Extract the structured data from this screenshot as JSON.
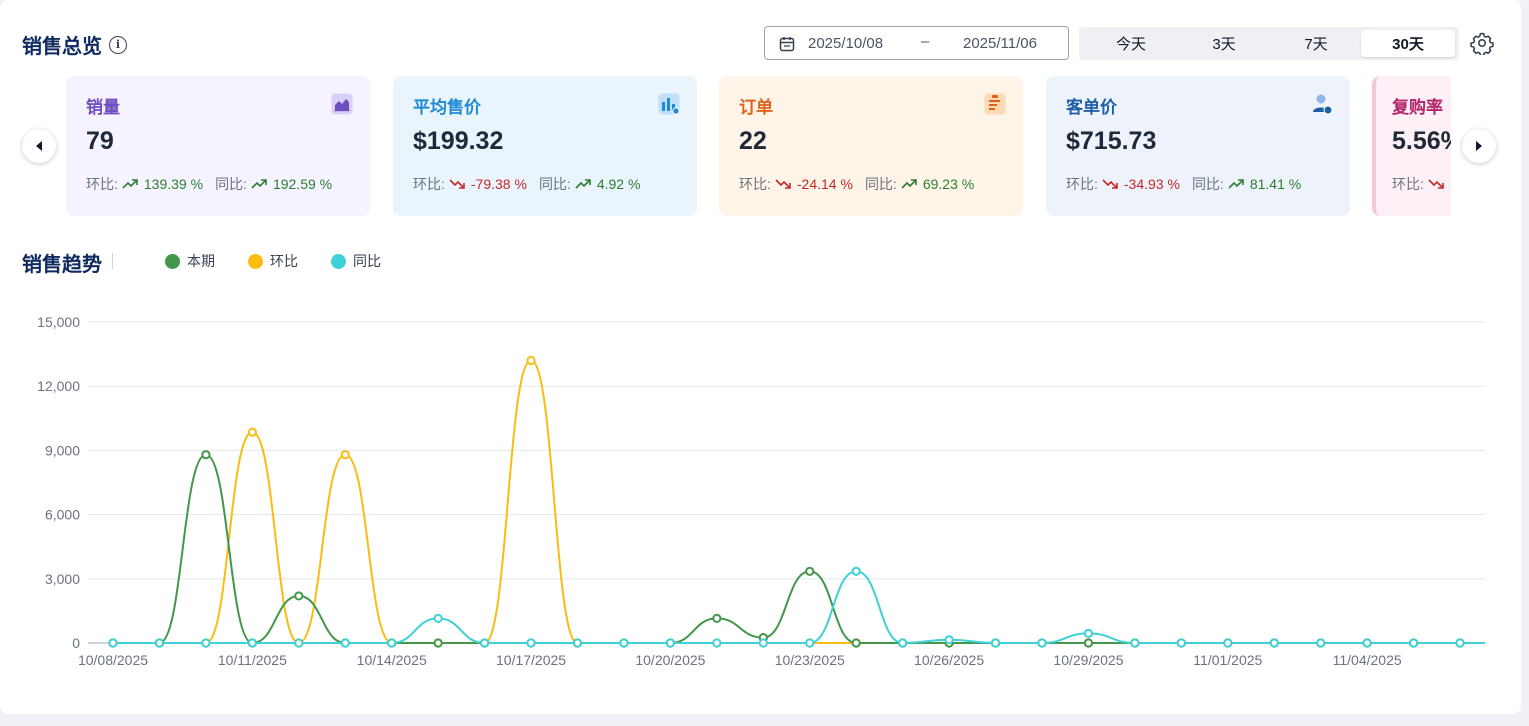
{
  "header": {
    "title": "销售总览",
    "info_icon": "info-icon"
  },
  "date_range": {
    "start": "2025/10/08",
    "separator": "–",
    "end": "2025/11/06"
  },
  "periods": [
    {
      "label": "今天",
      "active": false
    },
    {
      "label": "3天",
      "active": false
    },
    {
      "label": "7天",
      "active": false
    },
    {
      "label": "30天",
      "active": true
    }
  ],
  "cards": [
    {
      "name": "sales-volume",
      "title": "销量",
      "value": "79",
      "bg": "#f5f3ff",
      "title_color": "#6d4fc2",
      "icon": "area-chart-icon",
      "mom_label": "环比:",
      "mom_dir": "up",
      "mom_value": "139.39 %",
      "yoy_label": "同比:",
      "yoy_dir": "up",
      "yoy_value": "192.59 %"
    },
    {
      "name": "avg-price",
      "title": "平均售价",
      "value": "$199.32",
      "bg": "#e9f4fd",
      "title_color": "#1f8ad6",
      "icon": "bar-chart-icon",
      "mom_label": "环比:",
      "mom_dir": "down",
      "mom_value": "-79.38 %",
      "yoy_label": "同比:",
      "yoy_dir": "up",
      "yoy_value": "4.92 %"
    },
    {
      "name": "orders",
      "title": "订单",
      "value": "22",
      "bg": "#fff4e8",
      "title_color": "#e0611a",
      "icon": "clipboard-icon",
      "mom_label": "环比:",
      "mom_dir": "down",
      "mom_value": "-24.14 %",
      "yoy_label": "同比:",
      "yoy_dir": "up",
      "yoy_value": "69.23 %"
    },
    {
      "name": "customer-avg",
      "title": "客单价",
      "value": "$715.73",
      "bg": "#eef3fb",
      "title_color": "#1f5fa8",
      "icon": "user-money-icon",
      "mom_label": "环比:",
      "mom_dir": "down",
      "mom_value": "-34.93 %",
      "yoy_label": "同比:",
      "yoy_dir": "up",
      "yoy_value": "81.41 %"
    },
    {
      "name": "repurchase-rate",
      "title": "复购率",
      "value": "5.56%",
      "bg": "#fdf0f6",
      "title_color": "#b3246a",
      "icon": "repeat-icon",
      "mom_label": "环比:",
      "mom_dir": "down",
      "mom_value": "",
      "yoy_label": "",
      "yoy_dir": "",
      "yoy_value": ""
    }
  ],
  "trend": {
    "title": "销售趋势",
    "legend": [
      {
        "name": "本期",
        "color": "#43964a"
      },
      {
        "name": "环比",
        "color": "#fbbc12"
      },
      {
        "name": "同比",
        "color": "#3fd0d8"
      }
    ]
  },
  "chart_data": {
    "type": "line",
    "x": [
      "10/08/2025",
      "10/09/2025",
      "10/10/2025",
      "10/11/2025",
      "10/12/2025",
      "10/13/2025",
      "10/14/2025",
      "10/15/2025",
      "10/16/2025",
      "10/17/2025",
      "10/18/2025",
      "10/19/2025",
      "10/20/2025",
      "10/21/2025",
      "10/22/2025",
      "10/23/2025",
      "10/24/2025",
      "10/25/2025",
      "10/26/2025",
      "10/27/2025",
      "10/28/2025",
      "10/29/2025",
      "10/30/2025",
      "10/31/2025",
      "11/01/2025",
      "11/02/2025",
      "11/03/2025",
      "11/04/2025",
      "11/05/2025",
      "11/06/2025"
    ],
    "x_tick_labels": [
      "10/08/2025",
      "10/11/2025",
      "10/14/2025",
      "10/17/2025",
      "10/20/2025",
      "10/23/2025",
      "10/26/2025",
      "10/29/2025",
      "11/01/2025",
      "11/04/2025"
    ],
    "series": [
      {
        "name": "本期",
        "color": "#43964a",
        "values": [
          0,
          0,
          8800,
          0,
          2200,
          0,
          0,
          0,
          0,
          0,
          0,
          0,
          0,
          1150,
          250,
          3350,
          0,
          0,
          0,
          0,
          0,
          0,
          0,
          0,
          0,
          0,
          0,
          0,
          0,
          0
        ]
      },
      {
        "name": "环比",
        "color": "#fbbc12",
        "values": [
          0,
          0,
          0,
          9850,
          0,
          8800,
          0,
          0,
          0,
          13200,
          0,
          0,
          0,
          0,
          0,
          0,
          0,
          0,
          0,
          0,
          0,
          0,
          0,
          0,
          0,
          0,
          0,
          0,
          0,
          0
        ]
      },
      {
        "name": "同比",
        "color": "#3fd0d8",
        "values": [
          0,
          0,
          0,
          0,
          0,
          0,
          0,
          1150,
          0,
          0,
          0,
          0,
          0,
          0,
          0,
          0,
          3350,
          0,
          150,
          0,
          0,
          450,
          0,
          0,
          0,
          0,
          0,
          0,
          0,
          0
        ]
      }
    ],
    "ylim": [
      0,
      15000
    ],
    "y_ticks": [
      "0",
      "3,000",
      "6,000",
      "9,000",
      "12,000",
      "15,000"
    ],
    "grid": true,
    "legend_position": "top-left"
  }
}
